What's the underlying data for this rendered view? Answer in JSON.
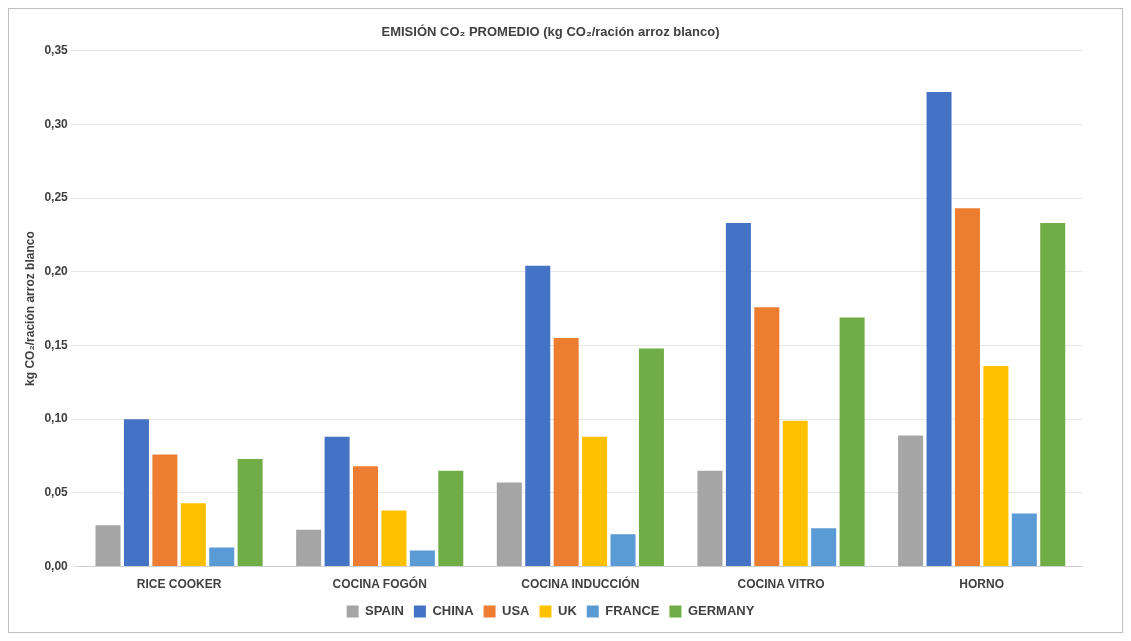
{
  "chart_data": {
    "type": "bar",
    "title": "EMISIÓN CO₂ PROMEDIO (kg CO₂/ración arroz blanco)",
    "ylabel": "kg CO₂/ración arroz blanco",
    "categories": [
      "RICE COOKER",
      "COCINA FOGÓN",
      "COCINA INDUCCIÓN",
      "COCINA VITRO",
      "HORNO"
    ],
    "series": [
      {
        "name": "SPAIN",
        "color": "#a5a5a5",
        "values": [
          0.028,
          0.025,
          0.057,
          0.065,
          0.089
        ]
      },
      {
        "name": "CHINA",
        "color": "#4472c4",
        "values": [
          0.1,
          0.088,
          0.204,
          0.233,
          0.322
        ]
      },
      {
        "name": "USA",
        "color": "#ed7d31",
        "values": [
          0.076,
          0.068,
          0.155,
          0.176,
          0.243
        ]
      },
      {
        "name": "UK",
        "color": "#ffc000",
        "values": [
          0.043,
          0.038,
          0.088,
          0.099,
          0.136
        ]
      },
      {
        "name": "FRANCE",
        "color": "#5b9bd5",
        "values": [
          0.013,
          0.011,
          0.022,
          0.026,
          0.036
        ]
      },
      {
        "name": "GERMANY",
        "color": "#70ad47",
        "values": [
          0.073,
          0.065,
          0.148,
          0.169,
          0.233
        ]
      }
    ],
    "ylim": [
      0,
      0.35
    ],
    "yticks": [
      {
        "value": 0,
        "label": "0,00"
      },
      {
        "value": 0.05,
        "label": "0,05"
      },
      {
        "value": 0.1,
        "label": "0,10"
      },
      {
        "value": 0.15,
        "label": "0,15"
      },
      {
        "value": 0.2,
        "label": "0,20"
      },
      {
        "value": 0.25,
        "label": "0,25"
      },
      {
        "value": 0.3,
        "label": "0,30"
      },
      {
        "value": 0.35,
        "label": "0,35"
      }
    ],
    "grid": "y",
    "legend": "bottom"
  }
}
